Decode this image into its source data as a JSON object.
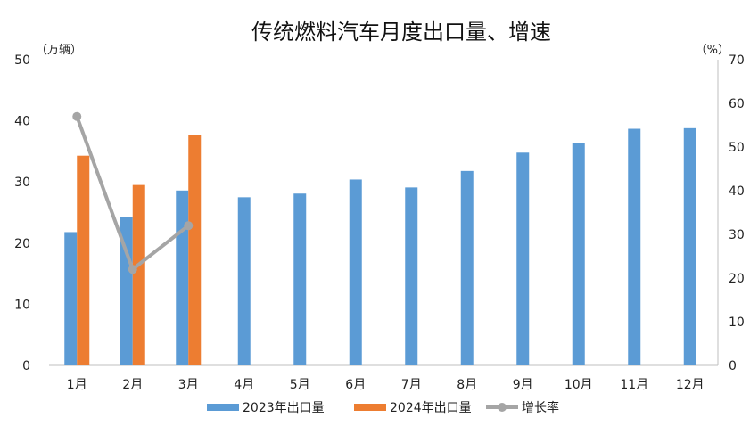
{
  "chart_data": {
    "type": "bar",
    "title": "传统燃料汽车月度出口量、增速",
    "left_axis_unit": "（万辆）",
    "right_axis_unit": "（%）",
    "categories": [
      "1月",
      "2月",
      "3月",
      "4月",
      "5月",
      "6月",
      "7月",
      "8月",
      "9月",
      "10月",
      "11月",
      "12月"
    ],
    "series": [
      {
        "name": "2023年出口量",
        "kind": "bar",
        "axis": "left",
        "color": "#5B9BD5",
        "values": [
          21.8,
          24.2,
          28.6,
          27.5,
          28.1,
          30.4,
          29.1,
          31.8,
          34.8,
          36.4,
          38.7,
          38.8
        ]
      },
      {
        "name": "2024年出口量",
        "kind": "bar",
        "axis": "left",
        "color": "#ED7D31",
        "values": [
          34.3,
          29.5,
          37.7,
          null,
          null,
          null,
          null,
          null,
          null,
          null,
          null,
          null
        ]
      },
      {
        "name": "增长率",
        "kind": "line",
        "axis": "right",
        "color": "#A5A5A5",
        "values": [
          57,
          22,
          32,
          null,
          null,
          null,
          null,
          null,
          null,
          null,
          null,
          null
        ]
      }
    ],
    "ylim_left": [
      0,
      50
    ],
    "yticks_left": [
      0,
      10,
      20,
      30,
      40,
      50
    ],
    "ylim_right": [
      0,
      70
    ],
    "yticks_right": [
      0,
      10,
      20,
      30,
      40,
      50,
      60,
      70
    ],
    "grid": false,
    "legend_position": "bottom"
  }
}
